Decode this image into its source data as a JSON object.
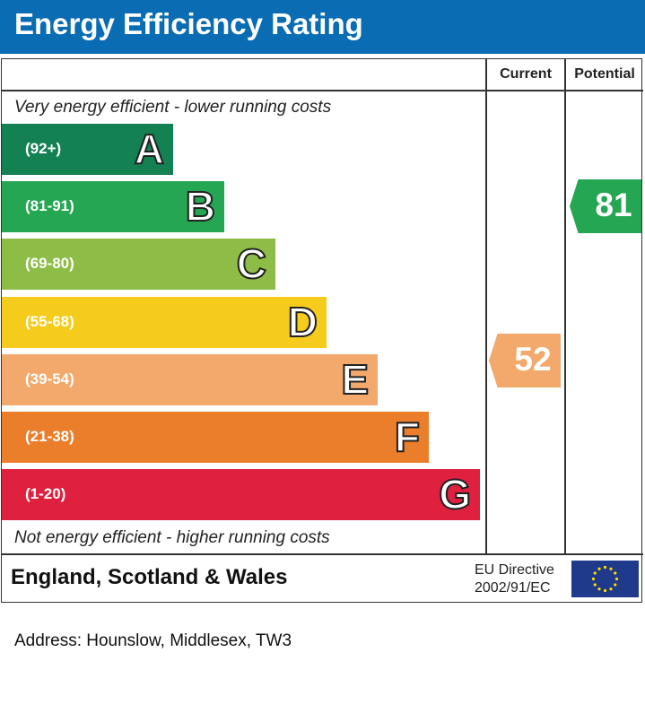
{
  "title": "Energy Efficiency Rating",
  "chart_data": {
    "type": "bar",
    "columns": [
      "Current",
      "Potential"
    ],
    "top_note": "Very energy efficient - lower running costs",
    "bottom_note": "Not energy efficient - higher running costs",
    "bands": [
      {
        "letter": "A",
        "range": "(92+)",
        "color": "#138152"
      },
      {
        "letter": "B",
        "range": "(81-91)",
        "color": "#24a652"
      },
      {
        "letter": "C",
        "range": "(69-80)",
        "color": "#8dbd46"
      },
      {
        "letter": "D",
        "range": "(55-68)",
        "color": "#f5cc1b"
      },
      {
        "letter": "E",
        "range": "(39-54)",
        "color": "#f2a96b"
      },
      {
        "letter": "F",
        "range": "(21-38)",
        "color": "#ea7e2a"
      },
      {
        "letter": "G",
        "range": "(1-20)",
        "color": "#e0203f"
      }
    ],
    "current": {
      "value": "52",
      "band": "E",
      "color": "#f2a96b"
    },
    "potential": {
      "value": "81",
      "band": "B",
      "color": "#24a652"
    }
  },
  "footer": {
    "region": "England, Scotland & Wales",
    "directive_line1": "EU Directive",
    "directive_line2": "2002/91/EC"
  },
  "address": "Address: Hounslow, Middlesex, TW3"
}
